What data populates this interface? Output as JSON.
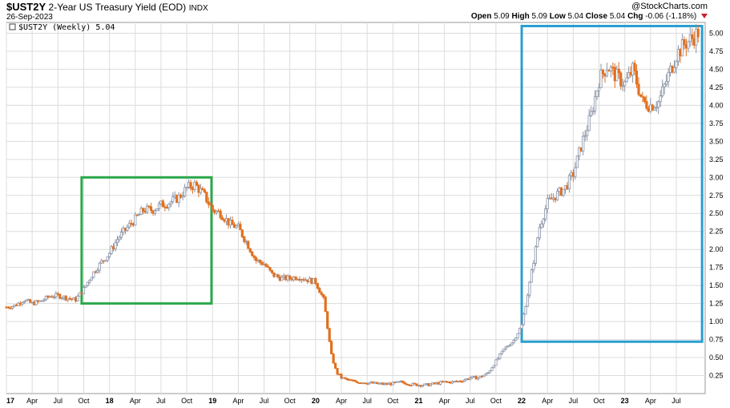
{
  "header": {
    "symbol": "$UST2Y",
    "description": "2-Year US Treasury Yield (EOD)",
    "exchange": "INDX",
    "date": "26-Sep-2023",
    "watermark": "@StockCharts.com",
    "quote": {
      "open_label": "Open",
      "open": "5.09",
      "high_label": "High",
      "high": "5.09",
      "low_label": "Low",
      "low": "5.04",
      "close_label": "Close",
      "close": "5.04",
      "chg_label": "Chg",
      "chg": "-0.06 (-1.18%)"
    }
  },
  "chart_data": {
    "type": "line",
    "legend": {
      "text": "$UST2Y (Weekly) 5.04",
      "placement": "top-left"
    },
    "y_ticks": [
      "0.25",
      "0.50",
      "0.75",
      "1.00",
      "1.25",
      "1.50",
      "1.75",
      "2.00",
      "2.25",
      "2.50",
      "2.75",
      "3.00",
      "3.25",
      "3.50",
      "3.75",
      "4.00",
      "4.25",
      "4.50",
      "4.75",
      "5.00"
    ],
    "ylim": [
      0,
      5.15
    ],
    "x_ticks": [
      {
        "label": "17",
        "bold": true,
        "t": 2017.0
      },
      {
        "label": "Apr",
        "bold": false,
        "t": 2017.25
      },
      {
        "label": "Jul",
        "bold": false,
        "t": 2017.5
      },
      {
        "label": "Oct",
        "bold": false,
        "t": 2017.75
      },
      {
        "label": "18",
        "bold": true,
        "t": 2018.0
      },
      {
        "label": "Apr",
        "bold": false,
        "t": 2018.25
      },
      {
        "label": "Jul",
        "bold": false,
        "t": 2018.5
      },
      {
        "label": "Oct",
        "bold": false,
        "t": 2018.75
      },
      {
        "label": "19",
        "bold": true,
        "t": 2019.0
      },
      {
        "label": "Apr",
        "bold": false,
        "t": 2019.25
      },
      {
        "label": "Jul",
        "bold": false,
        "t": 2019.5
      },
      {
        "label": "Oct",
        "bold": false,
        "t": 2019.75
      },
      {
        "label": "20",
        "bold": true,
        "t": 2020.0
      },
      {
        "label": "Apr",
        "bold": false,
        "t": 2020.25
      },
      {
        "label": "Jul",
        "bold": false,
        "t": 2020.5
      },
      {
        "label": "Oct",
        "bold": false,
        "t": 2020.75
      },
      {
        "label": "21",
        "bold": true,
        "t": 2021.0
      },
      {
        "label": "Apr",
        "bold": false,
        "t": 2021.25
      },
      {
        "label": "Jul",
        "bold": false,
        "t": 2021.5
      },
      {
        "label": "Oct",
        "bold": false,
        "t": 2021.75
      },
      {
        "label": "22",
        "bold": true,
        "t": 2022.0
      },
      {
        "label": "Apr",
        "bold": false,
        "t": 2022.25
      },
      {
        "label": "Jul",
        "bold": false,
        "t": 2022.5
      },
      {
        "label": "Oct",
        "bold": false,
        "t": 2022.75
      },
      {
        "label": "23",
        "bold": true,
        "t": 2023.0
      },
      {
        "label": "Apr",
        "bold": false,
        "t": 2023.25
      },
      {
        "label": "Jul",
        "bold": false,
        "t": 2023.5
      }
    ],
    "xlim": [
      2017.0,
      2023.78
    ],
    "grid": true,
    "series": [
      {
        "values_t": [
          2017.0,
          2017.08,
          2017.17,
          2017.25,
          2017.33,
          2017.42,
          2017.5,
          2017.58,
          2017.67,
          2017.75,
          2017.83,
          2017.92,
          2018.0,
          2018.08,
          2018.17,
          2018.25,
          2018.33,
          2018.42,
          2018.5,
          2018.58,
          2018.67,
          2018.75,
          2018.83,
          2018.92,
          2019.0,
          2019.08,
          2019.17,
          2019.25,
          2019.33,
          2019.42,
          2019.5,
          2019.58,
          2019.67,
          2019.75,
          2019.83,
          2019.92,
          2020.0,
          2020.08,
          2020.15,
          2020.2,
          2020.25,
          2020.33,
          2020.42,
          2020.5,
          2020.58,
          2020.67,
          2020.75,
          2020.83,
          2020.92,
          2021.0,
          2021.08,
          2021.17,
          2021.25,
          2021.33,
          2021.42,
          2021.5,
          2021.58,
          2021.67,
          2021.75,
          2021.83,
          2021.92,
          2022.0,
          2022.08,
          2022.17,
          2022.25,
          2022.33,
          2022.42,
          2022.5,
          2022.58,
          2022.67,
          2022.75,
          2022.83,
          2022.92,
          2023.0,
          2023.08,
          2023.17,
          2023.25,
          2023.33,
          2023.42,
          2023.5,
          2023.58,
          2023.67,
          2023.73
        ],
        "values_y": [
          1.2,
          1.22,
          1.3,
          1.25,
          1.28,
          1.35,
          1.36,
          1.33,
          1.3,
          1.45,
          1.65,
          1.82,
          1.95,
          2.15,
          2.3,
          2.42,
          2.55,
          2.55,
          2.62,
          2.65,
          2.72,
          2.85,
          2.9,
          2.75,
          2.55,
          2.5,
          2.35,
          2.3,
          2.1,
          1.85,
          1.8,
          1.65,
          1.6,
          1.6,
          1.62,
          1.58,
          1.55,
          1.3,
          0.55,
          0.3,
          0.22,
          0.18,
          0.16,
          0.15,
          0.14,
          0.13,
          0.14,
          0.16,
          0.13,
          0.12,
          0.12,
          0.14,
          0.16,
          0.16,
          0.18,
          0.22,
          0.22,
          0.28,
          0.45,
          0.62,
          0.73,
          0.95,
          1.55,
          2.3,
          2.65,
          2.75,
          2.85,
          3.05,
          3.45,
          3.85,
          4.35,
          4.55,
          4.4,
          4.3,
          4.5,
          4.05,
          4.0,
          4.05,
          4.4,
          4.7,
          4.85,
          4.95,
          5.04
        ]
      }
    ],
    "annotations": [
      {
        "name": "green-box",
        "color": "#2aa84a",
        "t0": 2017.73,
        "t1": 2018.99,
        "y0": 1.25,
        "y1": 3.0
      },
      {
        "name": "blue-box",
        "color": "#2a9fcf",
        "t0": 2022.0,
        "t1": 2023.75,
        "y0": 0.72,
        "y1": 5.1
      }
    ],
    "colors": {
      "up": "#8a93a6",
      "down": "#e07020",
      "grid": "#dcdcdc"
    }
  }
}
